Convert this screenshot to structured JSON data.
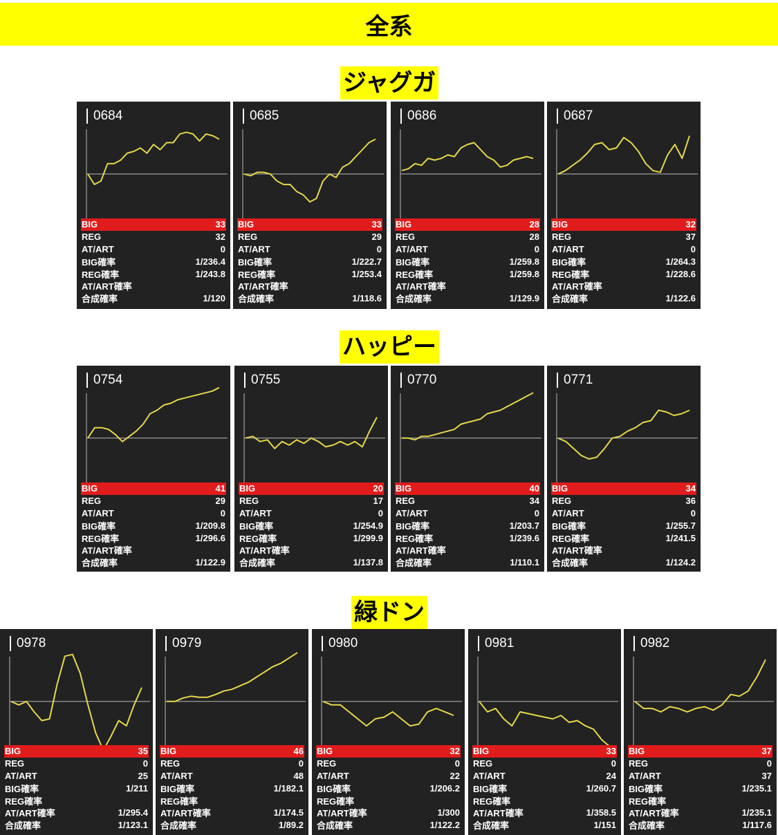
{
  "title": "全系",
  "colors": {
    "banner": "#ffff00",
    "panel_bg": "#222222",
    "line": "#e6d84a",
    "big_row": "#e01c1c"
  },
  "stat_labels": {
    "big": "BIG",
    "reg": "REG",
    "at": "AT/ART",
    "big_rate": "BIG確率",
    "reg_rate": "REG確率",
    "at_rate": "AT/ART確率",
    "total_rate": "合成確率"
  },
  "groups": [
    {
      "name": "ジャグガ",
      "machines": [
        {
          "id": "0684",
          "big": "33",
          "reg": "32",
          "at": "0",
          "big_rate": "1/236.4",
          "reg_rate": "1/243.8",
          "at_rate": "",
          "total_rate": "1/120",
          "trend": [
            0,
            -0.3,
            -0.2,
            0.3,
            0.3,
            0.4,
            0.6,
            0.65,
            0.75,
            0.6,
            0.85,
            0.7,
            0.9,
            0.9,
            1.15,
            1.2,
            1.15,
            0.95,
            1.15,
            1.1,
            1.0
          ]
        },
        {
          "id": "0685",
          "big": "33",
          "reg": "29",
          "at": "0",
          "big_rate": "1/222.7",
          "reg_rate": "1/253.4",
          "at_rate": "",
          "total_rate": "1/118.6",
          "trend": [
            0,
            -0.05,
            0.05,
            0.05,
            0,
            -0.2,
            -0.3,
            -0.3,
            -0.5,
            -0.6,
            -0.8,
            -0.7,
            -0.2,
            0,
            -0.1,
            0.2,
            0.3,
            0.5,
            0.7,
            0.9,
            1.0
          ]
        },
        {
          "id": "0686",
          "big": "28",
          "reg": "28",
          "at": "0",
          "big_rate": "1/259.8",
          "reg_rate": "1/259.8",
          "at_rate": "",
          "total_rate": "1/129.9",
          "trend": [
            0.1,
            0.15,
            0.3,
            0.25,
            0.45,
            0.4,
            0.45,
            0.55,
            0.5,
            0.75,
            0.85,
            0.9,
            0.7,
            0.5,
            0.4,
            0.2,
            0.25,
            0.4,
            0.45,
            0.5,
            0.45
          ]
        },
        {
          "id": "0687",
          "big": "32",
          "reg": "37",
          "at": "0",
          "big_rate": "1/264.3",
          "reg_rate": "1/228.6",
          "at_rate": "",
          "total_rate": "1/122.6",
          "trend": [
            0,
            0.1,
            0.25,
            0.4,
            0.6,
            0.85,
            0.9,
            0.7,
            0.75,
            1.05,
            0.9,
            0.65,
            0.3,
            0.1,
            0.05,
            0.55,
            0.85,
            0.45,
            1.1
          ]
        }
      ]
    },
    {
      "name": "ハッピー",
      "machines": [
        {
          "id": "0754",
          "big": "41",
          "reg": "29",
          "at": "0",
          "big_rate": "1/209.8",
          "reg_rate": "1/296.6",
          "at_rate": "",
          "total_rate": "1/122.9",
          "trend": [
            0,
            0.3,
            0.3,
            0.25,
            0.1,
            -0.1,
            0.05,
            0.2,
            0.4,
            0.7,
            0.8,
            0.95,
            1.0,
            1.1,
            1.15,
            1.2,
            1.25,
            1.3,
            1.35,
            1.45
          ]
        },
        {
          "id": "0755",
          "big": "20",
          "reg": "17",
          "at": "0",
          "big_rate": "1/254.9",
          "reg_rate": "1/299.9",
          "at_rate": "",
          "total_rate": "1/137.8",
          "trend": [
            0,
            0.05,
            -0.1,
            -0.05,
            -0.3,
            -0.1,
            -0.2,
            -0.05,
            -0.15,
            0,
            -0.1,
            -0.25,
            -0.2,
            -0.1,
            -0.2,
            -0.1,
            -0.25,
            0.2,
            0.6
          ]
        },
        {
          "id": "0770",
          "big": "40",
          "reg": "34",
          "at": "0",
          "big_rate": "1/203.7",
          "reg_rate": "1/239.6",
          "at_rate": "",
          "total_rate": "1/110.1",
          "trend": [
            0,
            0,
            -0.05,
            0.05,
            0.05,
            0.1,
            0.15,
            0.2,
            0.25,
            0.4,
            0.45,
            0.5,
            0.55,
            0.7,
            0.75,
            0.8,
            0.9,
            1.0,
            1.1,
            1.2,
            1.3
          ]
        },
        {
          "id": "0771",
          "big": "34",
          "reg": "36",
          "at": "0",
          "big_rate": "1/255.7",
          "reg_rate": "1/241.5",
          "at_rate": "",
          "total_rate": "1/124.2",
          "trend": [
            0,
            -0.1,
            -0.3,
            -0.5,
            -0.6,
            -0.55,
            -0.3,
            0,
            0.05,
            0.2,
            0.3,
            0.45,
            0.5,
            0.8,
            0.75,
            0.65,
            0.7,
            0.8
          ]
        }
      ]
    },
    {
      "name": "緑ドン",
      "machines": [
        {
          "id": "0978",
          "big": "35",
          "reg": "0",
          "at": "25",
          "big_rate": "1/211",
          "reg_rate": "",
          "at_rate": "1/295.4",
          "total_rate": "1/123.1",
          "trend": [
            0,
            -0.1,
            0,
            -0.3,
            -0.55,
            -0.5,
            0.5,
            1.3,
            1.35,
            0.8,
            -0.1,
            -0.9,
            -1.4,
            -1.0,
            -0.55,
            -0.7,
            -0.1,
            0.4
          ]
        },
        {
          "id": "0979",
          "big": "46",
          "reg": "0",
          "at": "48",
          "big_rate": "1/182.1",
          "reg_rate": "",
          "at_rate": "1/174.5",
          "total_rate": "1/89.2",
          "trend": [
            0,
            0,
            0.1,
            0.15,
            0.12,
            0.12,
            0.2,
            0.3,
            0.35,
            0.45,
            0.55,
            0.7,
            0.85,
            1.0,
            1.1,
            1.25,
            1.4
          ]
        },
        {
          "id": "0980",
          "big": "32",
          "reg": "0",
          "at": "22",
          "big_rate": "1/206.2",
          "reg_rate": "",
          "at_rate": "1/300",
          "total_rate": "1/122.2",
          "trend": [
            0,
            -0.1,
            -0.1,
            -0.3,
            -0.5,
            -0.7,
            -0.5,
            -0.45,
            -0.3,
            -0.5,
            -0.7,
            -0.65,
            -0.3,
            -0.2,
            -0.3,
            -0.4
          ]
        },
        {
          "id": "0981",
          "big": "33",
          "reg": "0",
          "at": "24",
          "big_rate": "1/260.7",
          "reg_rate": "",
          "at_rate": "1/358.5",
          "total_rate": "1/151",
          "trend": [
            0,
            -0.3,
            -0.2,
            -0.5,
            -0.7,
            -0.3,
            -0.35,
            -0.4,
            -0.45,
            -0.5,
            -0.4,
            -0.6,
            -0.55,
            -0.7,
            -0.8,
            -1.1,
            -1.3
          ]
        },
        {
          "id": "0982",
          "big": "37",
          "reg": "0",
          "at": "37",
          "big_rate": "1/235.1",
          "reg_rate": "",
          "at_rate": "1/235.1",
          "total_rate": "1/117.6",
          "trend": [
            0,
            -0.2,
            -0.2,
            -0.3,
            -0.15,
            -0.2,
            -0.3,
            -0.2,
            -0.15,
            -0.25,
            -0.1,
            0.2,
            0.15,
            0.3,
            0.7,
            1.2
          ]
        }
      ]
    }
  ]
}
